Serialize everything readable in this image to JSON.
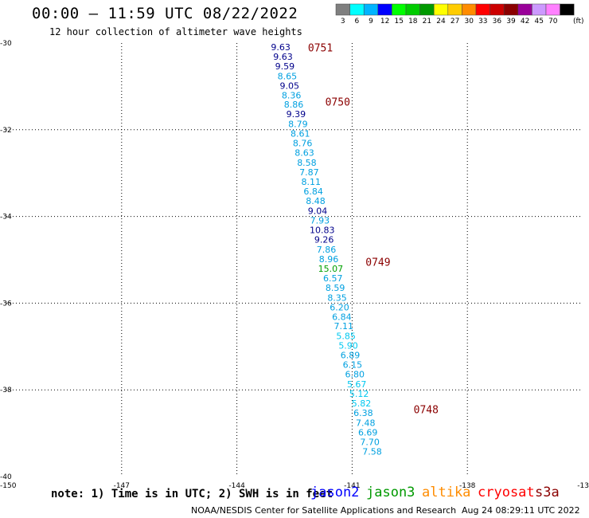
{
  "header": {
    "title": "00:00 – 11:59 UTC 08/22/2022",
    "subtitle": "12 hour collection of altimeter wave heights"
  },
  "color_scale": {
    "unit": "(ft)",
    "bins": [
      {
        "label": "3",
        "color": "#7f7f7f"
      },
      {
        "label": "6",
        "color": "#00ffff"
      },
      {
        "label": "9",
        "color": "#00b4ff"
      },
      {
        "label": "12",
        "color": "#0000ff"
      },
      {
        "label": "15",
        "color": "#00ff00"
      },
      {
        "label": "18",
        "color": "#00cc00"
      },
      {
        "label": "21",
        "color": "#009900"
      },
      {
        "label": "24",
        "color": "#ffff00"
      },
      {
        "label": "27",
        "color": "#ffcc00"
      },
      {
        "label": "30",
        "color": "#ff8c00"
      },
      {
        "label": "33",
        "color": "#ff0000"
      },
      {
        "label": "36",
        "color": "#cc0000"
      },
      {
        "label": "39",
        "color": "#8b0000"
      },
      {
        "label": "42",
        "color": "#990099"
      },
      {
        "label": "45",
        "color": "#cc99ff"
      },
      {
        "label": "70",
        "color": "#ff80ff"
      },
      {
        "label": "",
        "color": "#000000"
      }
    ]
  },
  "map": {
    "lon_range": [
      -150,
      -135
    ],
    "lat_range": [
      -40,
      -30
    ],
    "lon_labels": [
      "-150",
      "-147",
      "-144",
      "-141",
      "-138",
      "-13"
    ],
    "lat_labels": [
      "-30",
      "-32",
      "-34",
      "-36",
      "-38",
      "-40"
    ]
  },
  "time_labels": [
    {
      "text": "0751",
      "lon": -142.15,
      "lat": -30.1
    },
    {
      "text": "0750",
      "lon": -141.7,
      "lat": -31.35
    },
    {
      "text": "0749",
      "lon": -140.65,
      "lat": -35.05
    },
    {
      "text": "0748",
      "lon": -139.4,
      "lat": -38.45
    }
  ],
  "chart_data": {
    "type": "scatter",
    "title": "00:00 – 11:59 UTC 08/22/2022",
    "subtitle": "12 hour collection of altimeter wave heights",
    "xlabel": "",
    "ylabel": "",
    "xlim": [
      -150,
      -135
    ],
    "ylim": [
      -40,
      -30
    ],
    "points": [
      {
        "lon": -142.86,
        "lat": -30.09,
        "swh": "9.63",
        "color": "#00008b"
      },
      {
        "lon": -142.8,
        "lat": -30.31,
        "swh": "9.63",
        "color": "#00008b"
      },
      {
        "lon": -142.75,
        "lat": -30.53,
        "swh": "9.59",
        "color": "#00008b"
      },
      {
        "lon": -142.69,
        "lat": -30.76,
        "swh": "8.65",
        "color": "#00a0e0"
      },
      {
        "lon": -142.63,
        "lat": -30.98,
        "swh": "9.05",
        "color": "#00008b"
      },
      {
        "lon": -142.58,
        "lat": -31.2,
        "swh": "8.36",
        "color": "#00a0e0"
      },
      {
        "lon": -142.52,
        "lat": -31.42,
        "swh": "8.86",
        "color": "#00a0e0"
      },
      {
        "lon": -142.46,
        "lat": -31.64,
        "swh": "9.39",
        "color": "#00008b"
      },
      {
        "lon": -142.41,
        "lat": -31.87,
        "swh": "8.79",
        "color": "#00a0e0"
      },
      {
        "lon": -142.35,
        "lat": -32.09,
        "swh": "8.61",
        "color": "#00a0e0"
      },
      {
        "lon": -142.29,
        "lat": -32.31,
        "swh": "8.76",
        "color": "#00a0e0"
      },
      {
        "lon": -142.24,
        "lat": -32.53,
        "swh": "8.63",
        "color": "#00a0e0"
      },
      {
        "lon": -142.18,
        "lat": -32.76,
        "swh": "8.58",
        "color": "#00a0e0"
      },
      {
        "lon": -142.12,
        "lat": -32.98,
        "swh": "7.87",
        "color": "#00a0e0"
      },
      {
        "lon": -142.07,
        "lat": -33.2,
        "swh": "8.11",
        "color": "#00a0e0"
      },
      {
        "lon": -142.01,
        "lat": -33.42,
        "swh": "6.84",
        "color": "#00a0e0"
      },
      {
        "lon": -141.95,
        "lat": -33.64,
        "swh": "8.48",
        "color": "#00a0e0"
      },
      {
        "lon": -141.9,
        "lat": -33.87,
        "swh": "9.04",
        "color": "#00008b"
      },
      {
        "lon": -141.84,
        "lat": -34.09,
        "swh": "7.93",
        "color": "#00a0e0"
      },
      {
        "lon": -141.78,
        "lat": -34.31,
        "swh": "10.83",
        "color": "#00008b"
      },
      {
        "lon": -141.73,
        "lat": -34.53,
        "swh": "9.26",
        "color": "#00008b"
      },
      {
        "lon": -141.67,
        "lat": -34.76,
        "swh": "7.86",
        "color": "#00a0e0"
      },
      {
        "lon": -141.61,
        "lat": -34.98,
        "swh": "8.96",
        "color": "#00a0e0"
      },
      {
        "lon": -141.56,
        "lat": -35.2,
        "swh": "15.07",
        "color": "#00a000"
      },
      {
        "lon": -141.5,
        "lat": -35.42,
        "swh": "6.57",
        "color": "#00a0e0"
      },
      {
        "lon": -141.44,
        "lat": -35.64,
        "swh": "8.59",
        "color": "#00a0e0"
      },
      {
        "lon": -141.39,
        "lat": -35.87,
        "swh": "8.35",
        "color": "#00a0e0"
      },
      {
        "lon": -141.33,
        "lat": -36.09,
        "swh": "6.20",
        "color": "#00a0e0"
      },
      {
        "lon": -141.27,
        "lat": -36.31,
        "swh": "6.84",
        "color": "#00a0e0"
      },
      {
        "lon": -141.22,
        "lat": -36.53,
        "swh": "7.11",
        "color": "#00a0e0"
      },
      {
        "lon": -141.16,
        "lat": -36.76,
        "swh": "5.85",
        "color": "#00c8f0"
      },
      {
        "lon": -141.1,
        "lat": -36.98,
        "swh": "5.90",
        "color": "#00c8f0"
      },
      {
        "lon": -141.05,
        "lat": -37.2,
        "swh": "6.89",
        "color": "#00a0e0"
      },
      {
        "lon": -140.99,
        "lat": -37.42,
        "swh": "6.15",
        "color": "#00a0e0"
      },
      {
        "lon": -140.93,
        "lat": -37.64,
        "swh": "6.80",
        "color": "#00a0e0"
      },
      {
        "lon": -140.88,
        "lat": -37.87,
        "swh": "5.67",
        "color": "#00c8f0"
      },
      {
        "lon": -140.82,
        "lat": -38.09,
        "swh": "5.12",
        "color": "#00c8f0"
      },
      {
        "lon": -140.76,
        "lat": -38.31,
        "swh": "5.82",
        "color": "#00c8f0"
      },
      {
        "lon": -140.71,
        "lat": -38.53,
        "swh": "6.38",
        "color": "#00a0e0"
      },
      {
        "lon": -140.65,
        "lat": -38.76,
        "swh": "7.48",
        "color": "#00a0e0"
      },
      {
        "lon": -140.59,
        "lat": -38.98,
        "swh": "6.69",
        "color": "#00a0e0"
      },
      {
        "lon": -140.54,
        "lat": -39.2,
        "swh": "7.70",
        "color": "#00a0e0"
      },
      {
        "lon": -140.48,
        "lat": -39.42,
        "swh": "7.58",
        "color": "#00a0e0"
      }
    ]
  },
  "note": "note:  1) Time is in UTC;  2) SWH is in feet",
  "satellites": [
    {
      "name": "jason2",
      "color": "#0000ff"
    },
    {
      "name": "jason3",
      "color": "#009900"
    },
    {
      "name": "altika",
      "color": "#ff8c00"
    },
    {
      "name": "cryosat",
      "color": "#ff0000"
    },
    {
      "name": "s3a",
      "color": "#8b0000"
    }
  ],
  "footer": {
    "credit": "NOAA/NESDIS Center for Satellite Applications and Research",
    "generated": "Aug 24 08:29:11 UTC 2022"
  }
}
